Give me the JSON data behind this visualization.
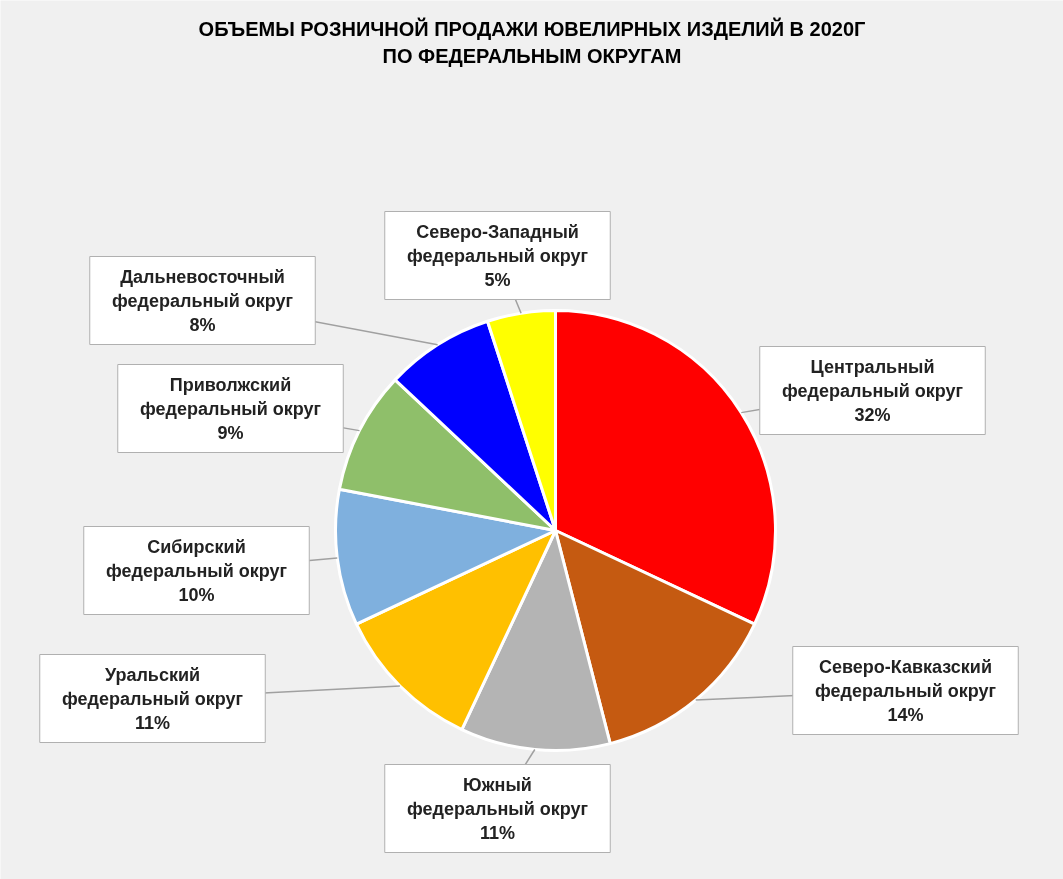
{
  "chart_data": {
    "type": "pie",
    "title": "ОБЪЕМЫ РОЗНИЧНОЙ ПРОДАЖИ ЮВЕЛИРНЫХ ИЗДЕЛИЙ В 2020Г ПО ФЕДЕРАЛЬНЫМ ОКРУГАМ",
    "categories": [
      "Центральный федеральный округ",
      "Северо-Кавказский федеральный округ",
      "Южный федеральный округ",
      "Уральский федеральный округ",
      "Сибирский федеральный округ",
      "Приволжский федеральный округ",
      "Дальневосточный федеральный округ",
      "Северо-Западный федеральный округ"
    ],
    "values": [
      32,
      14,
      11,
      11,
      10,
      9,
      8,
      5
    ],
    "value_labels": [
      "32%",
      "14%",
      "11%",
      "11%",
      "10%",
      "9%",
      "8%",
      "5%"
    ],
    "colors": [
      "#ff0000",
      "#c55a11",
      "#b4b4b4",
      "#ffc000",
      "#7fb0de",
      "#8fbf6a",
      "#0000ff",
      "#ffff00"
    ]
  }
}
